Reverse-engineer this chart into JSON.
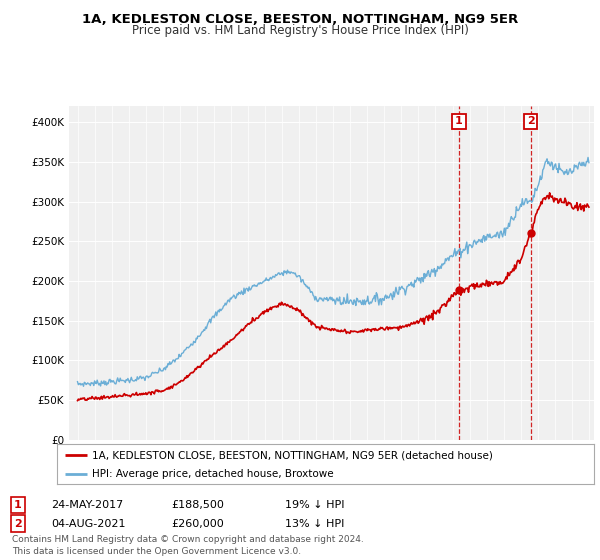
{
  "title": "1A, KEDLESTON CLOSE, BEESTON, NOTTINGHAM, NG9 5ER",
  "subtitle": "Price paid vs. HM Land Registry's House Price Index (HPI)",
  "legend_line1": "1A, KEDLESTON CLOSE, BEESTON, NOTTINGHAM, NG9 5ER (detached house)",
  "legend_line2": "HPI: Average price, detached house, Broxtowe",
  "annotation1_label": "1",
  "annotation1_date": "24-MAY-2017",
  "annotation1_price": "£188,500",
  "annotation1_hpi": "19% ↓ HPI",
  "annotation2_label": "2",
  "annotation2_date": "04-AUG-2021",
  "annotation2_price": "£260,000",
  "annotation2_hpi": "13% ↓ HPI",
  "footer": "Contains HM Land Registry data © Crown copyright and database right 2024.\nThis data is licensed under the Open Government Licence v3.0.",
  "hpi_color": "#6baed6",
  "price_color": "#cc0000",
  "annotation_color": "#cc0000",
  "background_color": "#ffffff",
  "plot_bg_color": "#f0f0f0",
  "ylim": [
    0,
    420000
  ],
  "yticks": [
    0,
    50000,
    100000,
    150000,
    200000,
    250000,
    300000,
    350000,
    400000
  ],
  "sale1_x": 2017.38,
  "sale1_y": 188500,
  "sale2_x": 2021.58,
  "sale2_y": 260000,
  "vline1_x": 2017.38,
  "vline2_x": 2021.58,
  "xmin": 1995,
  "xmax": 2025
}
